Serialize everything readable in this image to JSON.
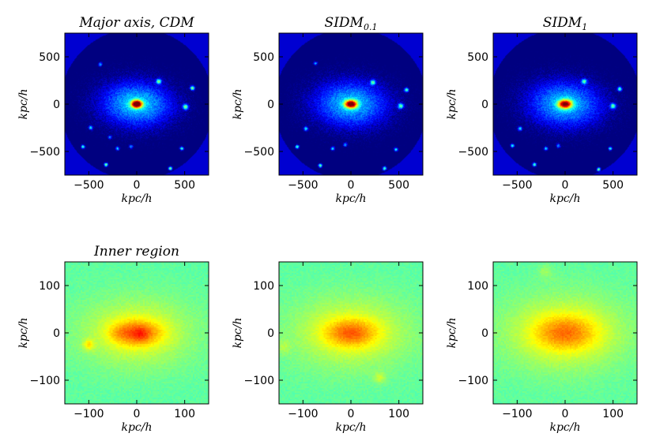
{
  "chart_data": [
    {
      "type": "heatmap",
      "panel": "top-left",
      "title": "Major axis, CDM",
      "xlabel": "kpc/h",
      "ylabel": "kpc/h",
      "xlim": [
        -750,
        750
      ],
      "ylim": [
        -750,
        750
      ],
      "xticks": [
        -500,
        0,
        500
      ],
      "yticks": [
        -500,
        0,
        500
      ],
      "xtick_labels": [
        "−500",
        "0",
        "500"
      ],
      "ytick_labels": [
        "−500",
        "0",
        "500"
      ],
      "colormap": "jet",
      "colormap_range": [
        0.08,
        0.62
      ],
      "density": {
        "core_amp": 0.55,
        "core_sx": 40,
        "core_sy": 28,
        "halo_amp": 0.23,
        "halo_sx": 280,
        "halo_sy": 180,
        "halo_rot": -0.05,
        "cutoff_radius": 800,
        "noise": 0.07,
        "clumps": [
          [
            230,
            240,
            0.28,
            18
          ],
          [
            580,
            170,
            0.35,
            16
          ],
          [
            510,
            -30,
            0.3,
            20
          ],
          [
            -480,
            -250,
            0.25,
            15
          ],
          [
            -560,
            -450,
            0.3,
            14
          ],
          [
            470,
            -470,
            0.28,
            14
          ],
          [
            -320,
            -640,
            0.35,
            14
          ],
          [
            -200,
            -470,
            0.25,
            14
          ],
          [
            -60,
            -450,
            0.2,
            14
          ],
          [
            650,
            -550,
            0.28,
            14
          ],
          [
            350,
            -680,
            0.35,
            14
          ],
          [
            -380,
            420,
            0.22,
            14
          ],
          [
            -280,
            -350,
            0.18,
            14
          ]
        ]
      }
    },
    {
      "type": "heatmap",
      "panel": "top-middle",
      "title": "SIDM",
      "title_subscript": "0.1",
      "xlabel": "kpc/h",
      "ylabel": "kpc/h",
      "xlim": [
        -750,
        750
      ],
      "ylim": [
        -750,
        750
      ],
      "xticks": [
        -500,
        0,
        500
      ],
      "yticks": [
        -500,
        0,
        500
      ],
      "xtick_labels": [
        "−500",
        "0",
        "500"
      ],
      "ytick_labels": [
        "−500",
        "0",
        "500"
      ],
      "colormap": "jet",
      "colormap_range": [
        0.08,
        0.62
      ],
      "density": {
        "core_amp": 0.5,
        "core_sx": 45,
        "core_sy": 30,
        "halo_amp": 0.22,
        "halo_sx": 290,
        "halo_sy": 185,
        "halo_rot": -0.05,
        "cutoff_radius": 800,
        "noise": 0.07,
        "clumps": [
          [
            230,
            230,
            0.26,
            18
          ],
          [
            580,
            150,
            0.3,
            16
          ],
          [
            520,
            -20,
            0.28,
            20
          ],
          [
            -470,
            -260,
            0.24,
            15
          ],
          [
            -560,
            -450,
            0.3,
            14
          ],
          [
            470,
            -480,
            0.28,
            14
          ],
          [
            -320,
            -650,
            0.33,
            14
          ],
          [
            -190,
            -470,
            0.25,
            14
          ],
          [
            -60,
            -430,
            0.2,
            14
          ],
          [
            650,
            -550,
            0.27,
            14
          ],
          [
            350,
            -680,
            0.32,
            14
          ],
          [
            -370,
            430,
            0.2,
            14
          ]
        ]
      }
    },
    {
      "type": "heatmap",
      "panel": "top-right",
      "title": "SIDM",
      "title_subscript": "1",
      "xlabel": "kpc/h",
      "ylabel": "kpc/h",
      "xlim": [
        -750,
        750
      ],
      "ylim": [
        -750,
        750
      ],
      "xticks": [
        -500,
        0,
        500
      ],
      "yticks": [
        -500,
        0,
        500
      ],
      "xtick_labels": [
        "−500",
        "0",
        "500"
      ],
      "ytick_labels": [
        "−500",
        "0",
        "500"
      ],
      "colormap": "jet",
      "colormap_range": [
        0.08,
        0.62
      ],
      "density": {
        "core_amp": 0.46,
        "core_sx": 50,
        "core_sy": 33,
        "halo_amp": 0.22,
        "halo_sx": 290,
        "halo_sy": 185,
        "halo_rot": -0.05,
        "cutoff_radius": 800,
        "noise": 0.07,
        "clumps": [
          [
            200,
            240,
            0.26,
            18
          ],
          [
            570,
            160,
            0.3,
            16
          ],
          [
            500,
            -20,
            0.28,
            20
          ],
          [
            -470,
            -260,
            0.24,
            15
          ],
          [
            -550,
            -440,
            0.3,
            14
          ],
          [
            470,
            -470,
            0.28,
            14
          ],
          [
            -320,
            -640,
            0.33,
            14
          ],
          [
            -200,
            -470,
            0.25,
            14
          ],
          [
            -70,
            -440,
            0.2,
            14
          ],
          [
            650,
            -560,
            0.27,
            14
          ],
          [
            350,
            -690,
            0.32,
            14
          ]
        ]
      }
    },
    {
      "type": "heatmap",
      "panel": "bottom-left",
      "title": "Inner region",
      "xlabel": "kpc/h",
      "ylabel": "kpc/h",
      "xlim": [
        -150,
        150
      ],
      "ylim": [
        -150,
        150
      ],
      "xticks": [
        -100,
        0,
        100
      ],
      "yticks": [
        -100,
        0,
        100
      ],
      "xtick_labels": [
        "−100",
        "0",
        "100"
      ],
      "ytick_labels": [
        "−100",
        "0",
        "100"
      ],
      "colormap": "jet",
      "colormap_range": [
        0.0,
        1.0
      ],
      "density": {
        "base": 0.42,
        "core_amp": 0.23,
        "core_sx": 35,
        "core_sy": 18,
        "halo_amp": 0.15,
        "halo_sx": 80,
        "halo_sy": 50,
        "halo_rot": 0.0,
        "cutoff_radius": 0,
        "noise": 0.035,
        "clumps": [
          [
            -100,
            -25,
            0.15,
            8
          ],
          [
            10,
            -5,
            0.05,
            10
          ],
          [
            -40,
            0,
            0.03,
            12
          ]
        ]
      }
    },
    {
      "type": "heatmap",
      "panel": "bottom-middle",
      "title": "",
      "xlabel": "kpc/h",
      "ylabel": "kpc/h",
      "xlim": [
        -150,
        150
      ],
      "ylim": [
        -150,
        150
      ],
      "xticks": [
        -100,
        0,
        100
      ],
      "yticks": [
        -100,
        0,
        100
      ],
      "xtick_labels": [
        "−100",
        "0",
        "100"
      ],
      "ytick_labels": [
        "−100",
        "0",
        "100"
      ],
      "colormap": "jet",
      "colormap_range": [
        0.0,
        1.0
      ],
      "density": {
        "base": 0.42,
        "core_amp": 0.2,
        "core_sx": 38,
        "core_sy": 20,
        "halo_amp": 0.15,
        "halo_sx": 85,
        "halo_sy": 52,
        "halo_rot": 0.0,
        "cutoff_radius": 0,
        "noise": 0.035,
        "clumps": [
          [
            60,
            -95,
            0.1,
            8
          ],
          [
            -140,
            -30,
            0.06,
            10
          ]
        ]
      }
    },
    {
      "type": "heatmap",
      "panel": "bottom-right",
      "title": "",
      "xlabel": "kpc/h",
      "ylabel": "kpc/h",
      "xlim": [
        -150,
        150
      ],
      "ylim": [
        -150,
        150
      ],
      "xticks": [
        -100,
        0,
        100
      ],
      "yticks": [
        -100,
        0,
        100
      ],
      "xtick_labels": [
        "−100",
        "0",
        "100"
      ],
      "ytick_labels": [
        "−100",
        "0",
        "100"
      ],
      "colormap": "jet",
      "colormap_range": [
        0.0,
        1.0
      ],
      "density": {
        "base": 0.42,
        "core_amp": 0.17,
        "core_sx": 45,
        "core_sy": 25,
        "halo_amp": 0.16,
        "halo_sx": 88,
        "halo_sy": 55,
        "halo_rot": 0.0,
        "cutoff_radius": 0,
        "noise": 0.035,
        "clumps": [
          [
            -40,
            130,
            0.06,
            10
          ]
        ]
      }
    }
  ]
}
